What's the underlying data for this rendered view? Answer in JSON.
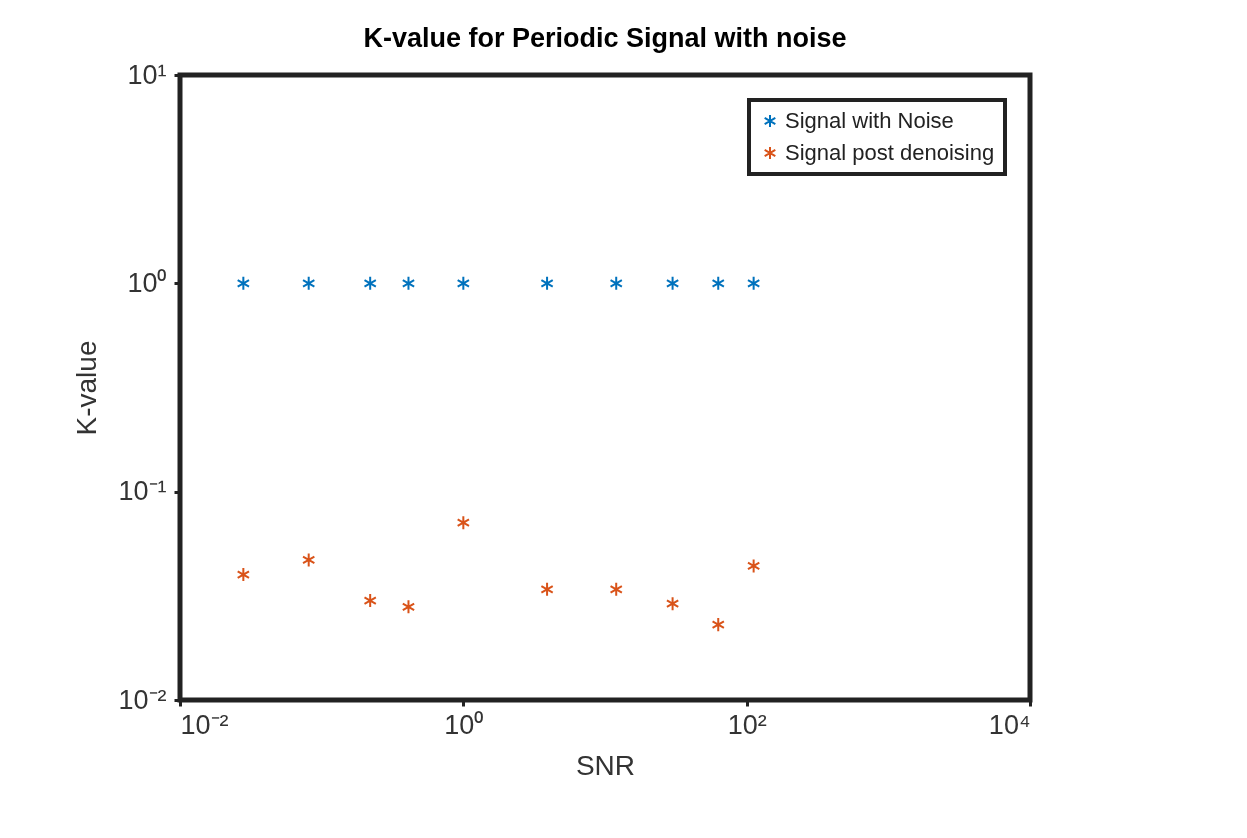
{
  "chart_data": {
    "type": "scatter",
    "title": "K-value for Periodic Signal with noise",
    "xlabel": "SNR",
    "ylabel": "K-value",
    "x": [
      0.028,
      0.081,
      0.22,
      0.41,
      1,
      3.9,
      12,
      30,
      63,
      112
    ],
    "series": [
      {
        "name": "Signal with Noise",
        "color": "#0072bd",
        "values": [
          1,
          1,
          1,
          1,
          1,
          1,
          1,
          1,
          1,
          1
        ]
      },
      {
        "name": "Signal post denoising",
        "color": "#d95319",
        "values": [
          0.04,
          0.047,
          0.03,
          0.028,
          0.071,
          0.034,
          0.034,
          0.029,
          0.023,
          0.044
        ]
      }
    ],
    "log": "xy",
    "xlim": [
      0.01,
      10000
    ],
    "ylim": [
      0.01,
      10
    ],
    "xticks": [
      {
        "value": 0.01,
        "label": "10⁻²"
      },
      {
        "value": 1,
        "label": "10⁰"
      },
      {
        "value": 100,
        "label": "10²"
      },
      {
        "value": 10000,
        "label": "10⁴"
      }
    ],
    "yticks": [
      {
        "value": 0.01,
        "label": "10⁻²"
      },
      {
        "value": 0.1,
        "label": "10⁻¹"
      },
      {
        "value": 1,
        "label": "10⁰"
      },
      {
        "value": 10,
        "label": "10¹"
      }
    ],
    "legend": "top right",
    "marker": "cross",
    "grid": false
  }
}
